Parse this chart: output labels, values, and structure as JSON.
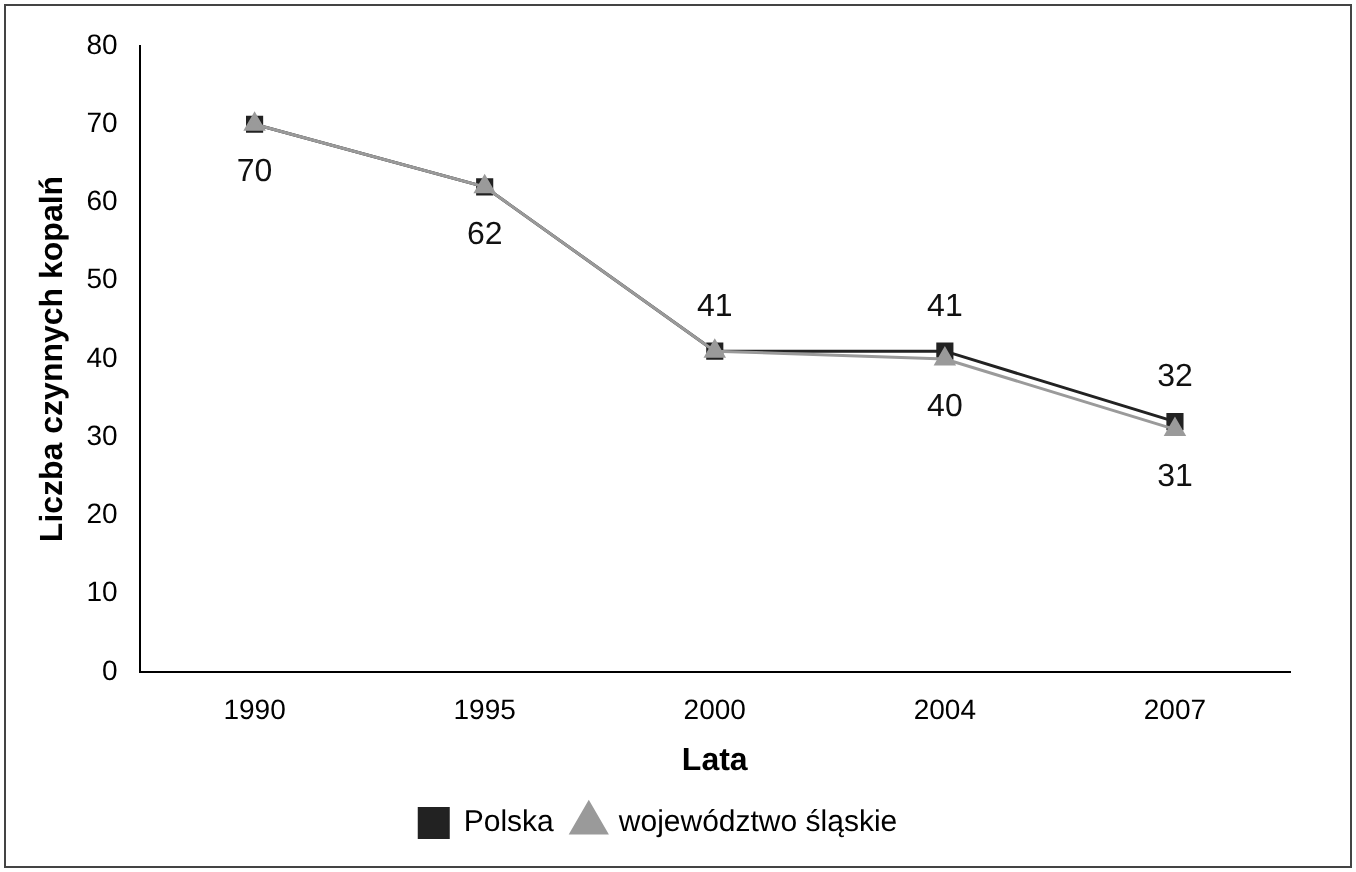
{
  "chart_data": {
    "type": "line",
    "xlabel": "Lata",
    "ylabel": "Liczba czynnych kopalń",
    "categories": [
      "1990",
      "1995",
      "2000",
      "2004",
      "2007"
    ],
    "series": [
      {
        "name": "Polska",
        "color": "#222222",
        "marker": "square",
        "values": [
          70,
          62,
          41,
          41,
          32
        ],
        "value_labels": [
          "70",
          "62",
          "41",
          "41",
          "32"
        ]
      },
      {
        "name": "województwo śląskie",
        "color": "#9a9a9a",
        "marker": "triangle",
        "values": [
          70,
          62,
          41,
          40,
          31
        ],
        "value_labels": [
          null,
          null,
          null,
          "40",
          "31"
        ]
      }
    ],
    "ylim": [
      0,
      80
    ],
    "yticks": [
      0,
      10,
      20,
      30,
      40,
      50,
      60,
      70,
      80
    ],
    "grid": false,
    "legend": "bottom"
  }
}
